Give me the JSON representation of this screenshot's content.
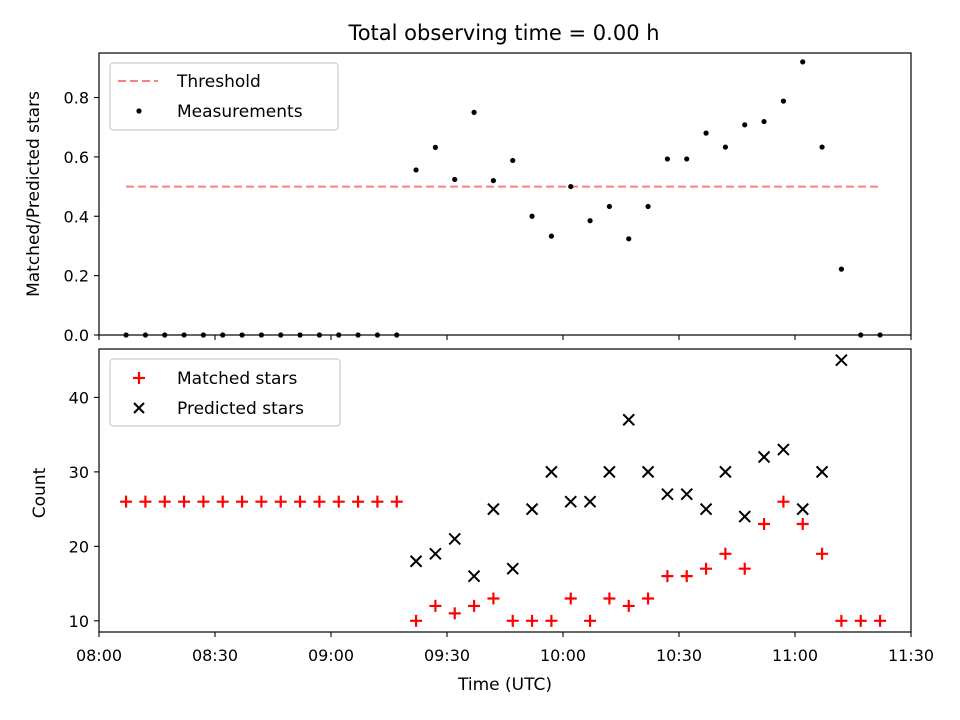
{
  "chart_data": [
    {
      "type": "scatter",
      "title": "Total observing time = 0.00 h",
      "ylabel": "Matched/Predicted stars",
      "xlabel": "",
      "xlim": [
        "08:00",
        "11:30"
      ],
      "ylim": [
        0,
        0.95
      ],
      "x_ticks": [
        "08:00",
        "08:30",
        "09:00",
        "09:30",
        "10:00",
        "10:30",
        "11:00",
        "11:30"
      ],
      "y_ticks": [
        "0.0",
        "0.2",
        "0.4",
        "0.6",
        "0.8"
      ],
      "legend_position": "top-left",
      "series": [
        {
          "name": "Threshold",
          "style": "dashed-line",
          "color": "#ff7f7f",
          "x": [
            "08:07",
            "11:22"
          ],
          "values": [
            0.5,
            0.5
          ]
        },
        {
          "name": "Measurements",
          "style": "dot",
          "color": "#000000",
          "x": [
            "08:07",
            "08:12",
            "08:17",
            "08:22",
            "08:27",
            "08:32",
            "08:37",
            "08:42",
            "08:47",
            "08:52",
            "08:57",
            "09:02",
            "09:07",
            "09:12",
            "09:17",
            "09:22",
            "09:27",
            "09:32",
            "09:37",
            "09:42",
            "09:47",
            "09:52",
            "09:57",
            "10:02",
            "10:07",
            "10:12",
            "10:17",
            "10:22",
            "10:27",
            "10:32",
            "10:37",
            "10:42",
            "10:47",
            "10:52",
            "10:57",
            "11:02",
            "11:07",
            "11:12",
            "11:17",
            "11:22"
          ],
          "values": [
            0,
            0,
            0,
            0,
            0,
            0,
            0,
            0,
            0,
            0,
            0,
            0,
            0,
            0,
            0,
            0.556,
            0.632,
            0.524,
            0.75,
            0.52,
            0.588,
            0.4,
            0.333,
            0.5,
            0.385,
            0.433,
            0.324,
            0.433,
            0.593,
            0.593,
            0.68,
            0.633,
            0.708,
            0.719,
            0.788,
            0.92,
            0.633,
            0.222,
            0,
            0
          ]
        }
      ]
    },
    {
      "type": "scatter",
      "title": "",
      "ylabel": "Count",
      "xlabel": "Time (UTC)",
      "xlim": [
        "08:00",
        "11:30"
      ],
      "ylim": [
        8.5,
        46.5
      ],
      "x_ticks": [
        "08:00",
        "08:30",
        "09:00",
        "09:30",
        "10:00",
        "10:30",
        "11:00",
        "11:30"
      ],
      "y_ticks": [
        "10",
        "20",
        "30",
        "40"
      ],
      "legend_position": "top-left",
      "series": [
        {
          "name": "Matched stars",
          "style": "plus",
          "color": "#ff0000",
          "x": [
            "08:07",
            "08:12",
            "08:17",
            "08:22",
            "08:27",
            "08:32",
            "08:37",
            "08:42",
            "08:47",
            "08:52",
            "08:57",
            "09:02",
            "09:07",
            "09:12",
            "09:17",
            "09:22",
            "09:27",
            "09:32",
            "09:37",
            "09:42",
            "09:47",
            "09:52",
            "09:57",
            "10:02",
            "10:07",
            "10:12",
            "10:17",
            "10:22",
            "10:27",
            "10:32",
            "10:37",
            "10:42",
            "10:47",
            "10:52",
            "10:57",
            "11:02",
            "11:07",
            "11:12",
            "11:17",
            "11:22"
          ],
          "values": [
            26,
            26,
            26,
            26,
            26,
            26,
            26,
            26,
            26,
            26,
            26,
            26,
            26,
            26,
            26,
            10,
            12,
            11,
            12,
            13,
            10,
            10,
            10,
            13,
            10,
            13,
            12,
            13,
            16,
            16,
            17,
            19,
            17,
            23,
            26,
            23,
            19,
            10,
            10,
            10
          ]
        },
        {
          "name": "Predicted stars",
          "style": "x",
          "color": "#000000",
          "x": [
            "09:22",
            "09:27",
            "09:32",
            "09:37",
            "09:42",
            "09:47",
            "09:52",
            "09:57",
            "10:02",
            "10:07",
            "10:12",
            "10:17",
            "10:22",
            "10:27",
            "10:32",
            "10:37",
            "10:42",
            "10:47",
            "10:52",
            "10:57",
            "11:02",
            "11:07",
            "11:12"
          ],
          "values": [
            18,
            19,
            21,
            16,
            25,
            17,
            25,
            30,
            26,
            26,
            30,
            37,
            30,
            27,
            27,
            25,
            30,
            24,
            32,
            33,
            25,
            30,
            45
          ]
        }
      ]
    }
  ]
}
